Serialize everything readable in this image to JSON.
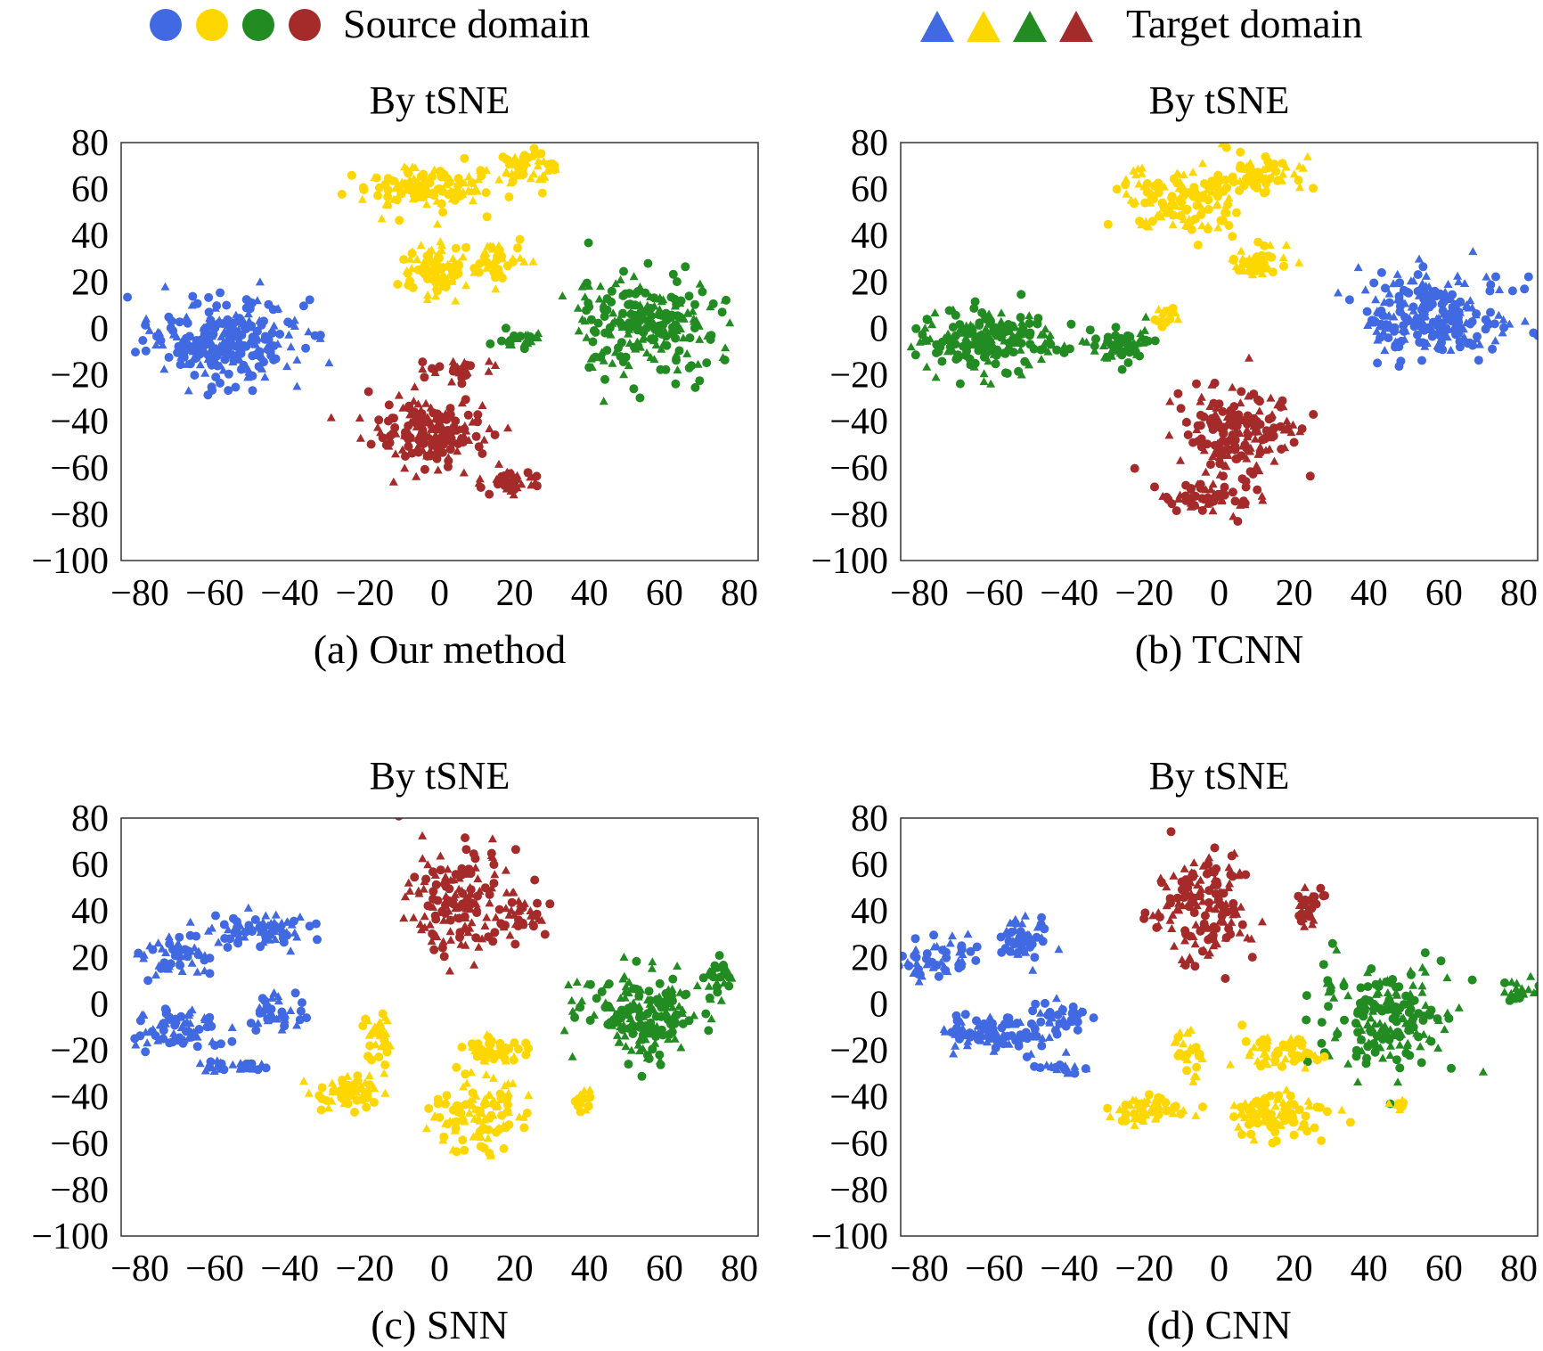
{
  "legend": {
    "source_label": "Source domain",
    "target_label": "Target domain",
    "colors": [
      "#4169e1",
      "#ffd700",
      "#228b22",
      "#a52a2a"
    ],
    "source_marker": "circle",
    "target_marker": "triangle"
  },
  "chart_data": [
    {
      "type": "scatter",
      "title": "By tSNE",
      "caption": "(a) Our method",
      "xlim": [
        -85,
        85
      ],
      "ylim": [
        -100,
        80
      ],
      "xticks": [
        -80,
        -60,
        -40,
        -20,
        0,
        20,
        40,
        60,
        80
      ],
      "yticks": [
        80,
        60,
        40,
        20,
        0,
        -20,
        -40,
        -60,
        -80,
        -100
      ],
      "clusters": [
        {
          "color": "#4169e1",
          "cx": -58,
          "cy": -5,
          "rx": 22,
          "ry": 20,
          "n": 260
        },
        {
          "color": "#ffd700",
          "cx": -5,
          "cy": 60,
          "rx": 22,
          "ry": 10,
          "n": 110
        },
        {
          "color": "#ffd700",
          "cx": 22,
          "cy": 70,
          "rx": 12,
          "ry": 7,
          "n": 60
        },
        {
          "color": "#ffd700",
          "cx": -2,
          "cy": 25,
          "rx": 12,
          "ry": 14,
          "n": 90
        },
        {
          "color": "#ffd700",
          "cx": 15,
          "cy": 30,
          "rx": 8,
          "ry": 10,
          "n": 40
        },
        {
          "color": "#228b22",
          "cx": 55,
          "cy": 2,
          "rx": 22,
          "ry": 22,
          "n": 230
        },
        {
          "color": "#228b22",
          "cx": 22,
          "cy": -5,
          "rx": 6,
          "ry": 5,
          "n": 25
        },
        {
          "color": "#a52a2a",
          "cx": -2,
          "cy": -45,
          "rx": 18,
          "ry": 16,
          "n": 170
        },
        {
          "color": "#a52a2a",
          "cx": 20,
          "cy": -65,
          "rx": 8,
          "ry": 6,
          "n": 40
        },
        {
          "color": "#a52a2a",
          "cx": 5,
          "cy": -18,
          "rx": 10,
          "ry": 5,
          "n": 30
        }
      ]
    },
    {
      "type": "scatter",
      "title": "By tSNE",
      "caption": "(b) TCNN",
      "xlim": [
        -85,
        85
      ],
      "ylim": [
        -100,
        80
      ],
      "xticks": [
        -80,
        -60,
        -40,
        -20,
        0,
        20,
        40,
        60,
        80
      ],
      "yticks": [
        80,
        60,
        40,
        20,
        0,
        -20,
        -40,
        -60,
        -80,
        -100
      ],
      "clusters": [
        {
          "color": "#ffd700",
          "cx": -10,
          "cy": 55,
          "rx": 18,
          "ry": 16,
          "n": 130
        },
        {
          "color": "#ffd700",
          "cx": 10,
          "cy": 65,
          "rx": 12,
          "ry": 10,
          "n": 60
        },
        {
          "color": "#ffd700",
          "cx": 10,
          "cy": 28,
          "rx": 8,
          "ry": 10,
          "n": 45
        },
        {
          "color": "#ffd700",
          "cx": -15,
          "cy": 5,
          "rx": 4,
          "ry": 6,
          "n": 15
        },
        {
          "color": "#4169e1",
          "cx": 58,
          "cy": 5,
          "rx": 22,
          "ry": 22,
          "n": 240
        },
        {
          "color": "#228b22",
          "cx": -62,
          "cy": -5,
          "rx": 20,
          "ry": 15,
          "n": 190
        },
        {
          "color": "#228b22",
          "cx": -25,
          "cy": -7,
          "rx": 10,
          "ry": 8,
          "n": 60
        },
        {
          "color": "#a52a2a",
          "cx": 5,
          "cy": -45,
          "rx": 18,
          "ry": 20,
          "n": 180
        },
        {
          "color": "#a52a2a",
          "cx": -2,
          "cy": -72,
          "rx": 14,
          "ry": 8,
          "n": 60
        }
      ]
    },
    {
      "type": "scatter",
      "title": "By tSNE",
      "caption": "(c) SNN",
      "xlim": [
        -85,
        85
      ],
      "ylim": [
        -100,
        80
      ],
      "xticks": [
        -80,
        -60,
        -40,
        -20,
        0,
        20,
        40,
        60,
        80
      ],
      "yticks": [
        80,
        60,
        40,
        20,
        0,
        -20,
        -40,
        -60,
        -80,
        -100
      ],
      "clusters": [
        {
          "color": "#4169e1",
          "cx": -48,
          "cy": 32,
          "rx": 14,
          "ry": 8,
          "n": 80
        },
        {
          "color": "#4169e1",
          "cx": -70,
          "cy": 20,
          "rx": 10,
          "ry": 12,
          "n": 50
        },
        {
          "color": "#4169e1",
          "cx": -70,
          "cy": -10,
          "rx": 14,
          "ry": 10,
          "n": 70
        },
        {
          "color": "#4169e1",
          "cx": -43,
          "cy": -5,
          "rx": 8,
          "ry": 8,
          "n": 40
        },
        {
          "color": "#4169e1",
          "cx": -55,
          "cy": -27,
          "rx": 12,
          "ry": 3,
          "n": 30
        },
        {
          "color": "#a52a2a",
          "cx": 5,
          "cy": 45,
          "rx": 15,
          "ry": 25,
          "n": 150
        },
        {
          "color": "#a52a2a",
          "cx": 22,
          "cy": 38,
          "rx": 7,
          "ry": 10,
          "n": 35
        },
        {
          "color": "#228b22",
          "cx": 55,
          "cy": -5,
          "rx": 18,
          "ry": 20,
          "n": 180
        },
        {
          "color": "#228b22",
          "cx": 75,
          "cy": 12,
          "rx": 5,
          "ry": 10,
          "n": 25
        },
        {
          "color": "#ffd700",
          "cx": -25,
          "cy": -38,
          "rx": 12,
          "ry": 8,
          "n": 60
        },
        {
          "color": "#ffd700",
          "cx": -17,
          "cy": -15,
          "rx": 5,
          "ry": 12,
          "n": 35
        },
        {
          "color": "#ffd700",
          "cx": 10,
          "cy": -48,
          "rx": 14,
          "ry": 16,
          "n": 110
        },
        {
          "color": "#ffd700",
          "cx": 15,
          "cy": -20,
          "rx": 10,
          "ry": 8,
          "n": 50
        },
        {
          "color": "#ffd700",
          "cx": 38,
          "cy": -42,
          "rx": 3,
          "ry": 8,
          "n": 15
        }
      ]
    },
    {
      "type": "scatter",
      "title": "By tSNE",
      "caption": "(d) CNN",
      "xlim": [
        -85,
        85
      ],
      "ylim": [
        -100,
        80
      ],
      "xticks": [
        -80,
        -60,
        -40,
        -20,
        0,
        20,
        40,
        60,
        80
      ],
      "yticks": [
        80,
        60,
        40,
        20,
        0,
        -20,
        -40,
        -60,
        -80,
        -100
      ],
      "clusters": [
        {
          "color": "#4169e1",
          "cx": -75,
          "cy": 20,
          "rx": 10,
          "ry": 12,
          "n": 50
        },
        {
          "color": "#4169e1",
          "cx": -52,
          "cy": 28,
          "rx": 7,
          "ry": 12,
          "n": 50
        },
        {
          "color": "#4169e1",
          "cx": -60,
          "cy": -13,
          "rx": 18,
          "ry": 10,
          "n": 90
        },
        {
          "color": "#4169e1",
          "cx": -42,
          "cy": -5,
          "rx": 8,
          "ry": 8,
          "n": 30
        },
        {
          "color": "#4169e1",
          "cx": -42,
          "cy": -28,
          "rx": 8,
          "ry": 2,
          "n": 20
        },
        {
          "color": "#a52a2a",
          "cx": -5,
          "cy": 40,
          "rx": 14,
          "ry": 25,
          "n": 150
        },
        {
          "color": "#a52a2a",
          "cx": 24,
          "cy": 43,
          "rx": 5,
          "ry": 10,
          "n": 30
        },
        {
          "color": "#228b22",
          "cx": 45,
          "cy": -5,
          "rx": 20,
          "ry": 25,
          "n": 190
        },
        {
          "color": "#228b22",
          "cx": 80,
          "cy": 5,
          "rx": 5,
          "ry": 6,
          "n": 20
        },
        {
          "color": "#ffd700",
          "cx": -20,
          "cy": -45,
          "rx": 14,
          "ry": 7,
          "n": 60
        },
        {
          "color": "#ffd700",
          "cx": 15,
          "cy": -48,
          "rx": 15,
          "ry": 10,
          "n": 90
        },
        {
          "color": "#ffd700",
          "cx": 15,
          "cy": -22,
          "rx": 10,
          "ry": 8,
          "n": 50
        },
        {
          "color": "#ffd700",
          "cx": -8,
          "cy": -20,
          "rx": 4,
          "ry": 12,
          "n": 25
        },
        {
          "color": "#ffd700",
          "cx": 48,
          "cy": -43,
          "rx": 3,
          "ry": 2,
          "n": 10
        }
      ]
    }
  ]
}
